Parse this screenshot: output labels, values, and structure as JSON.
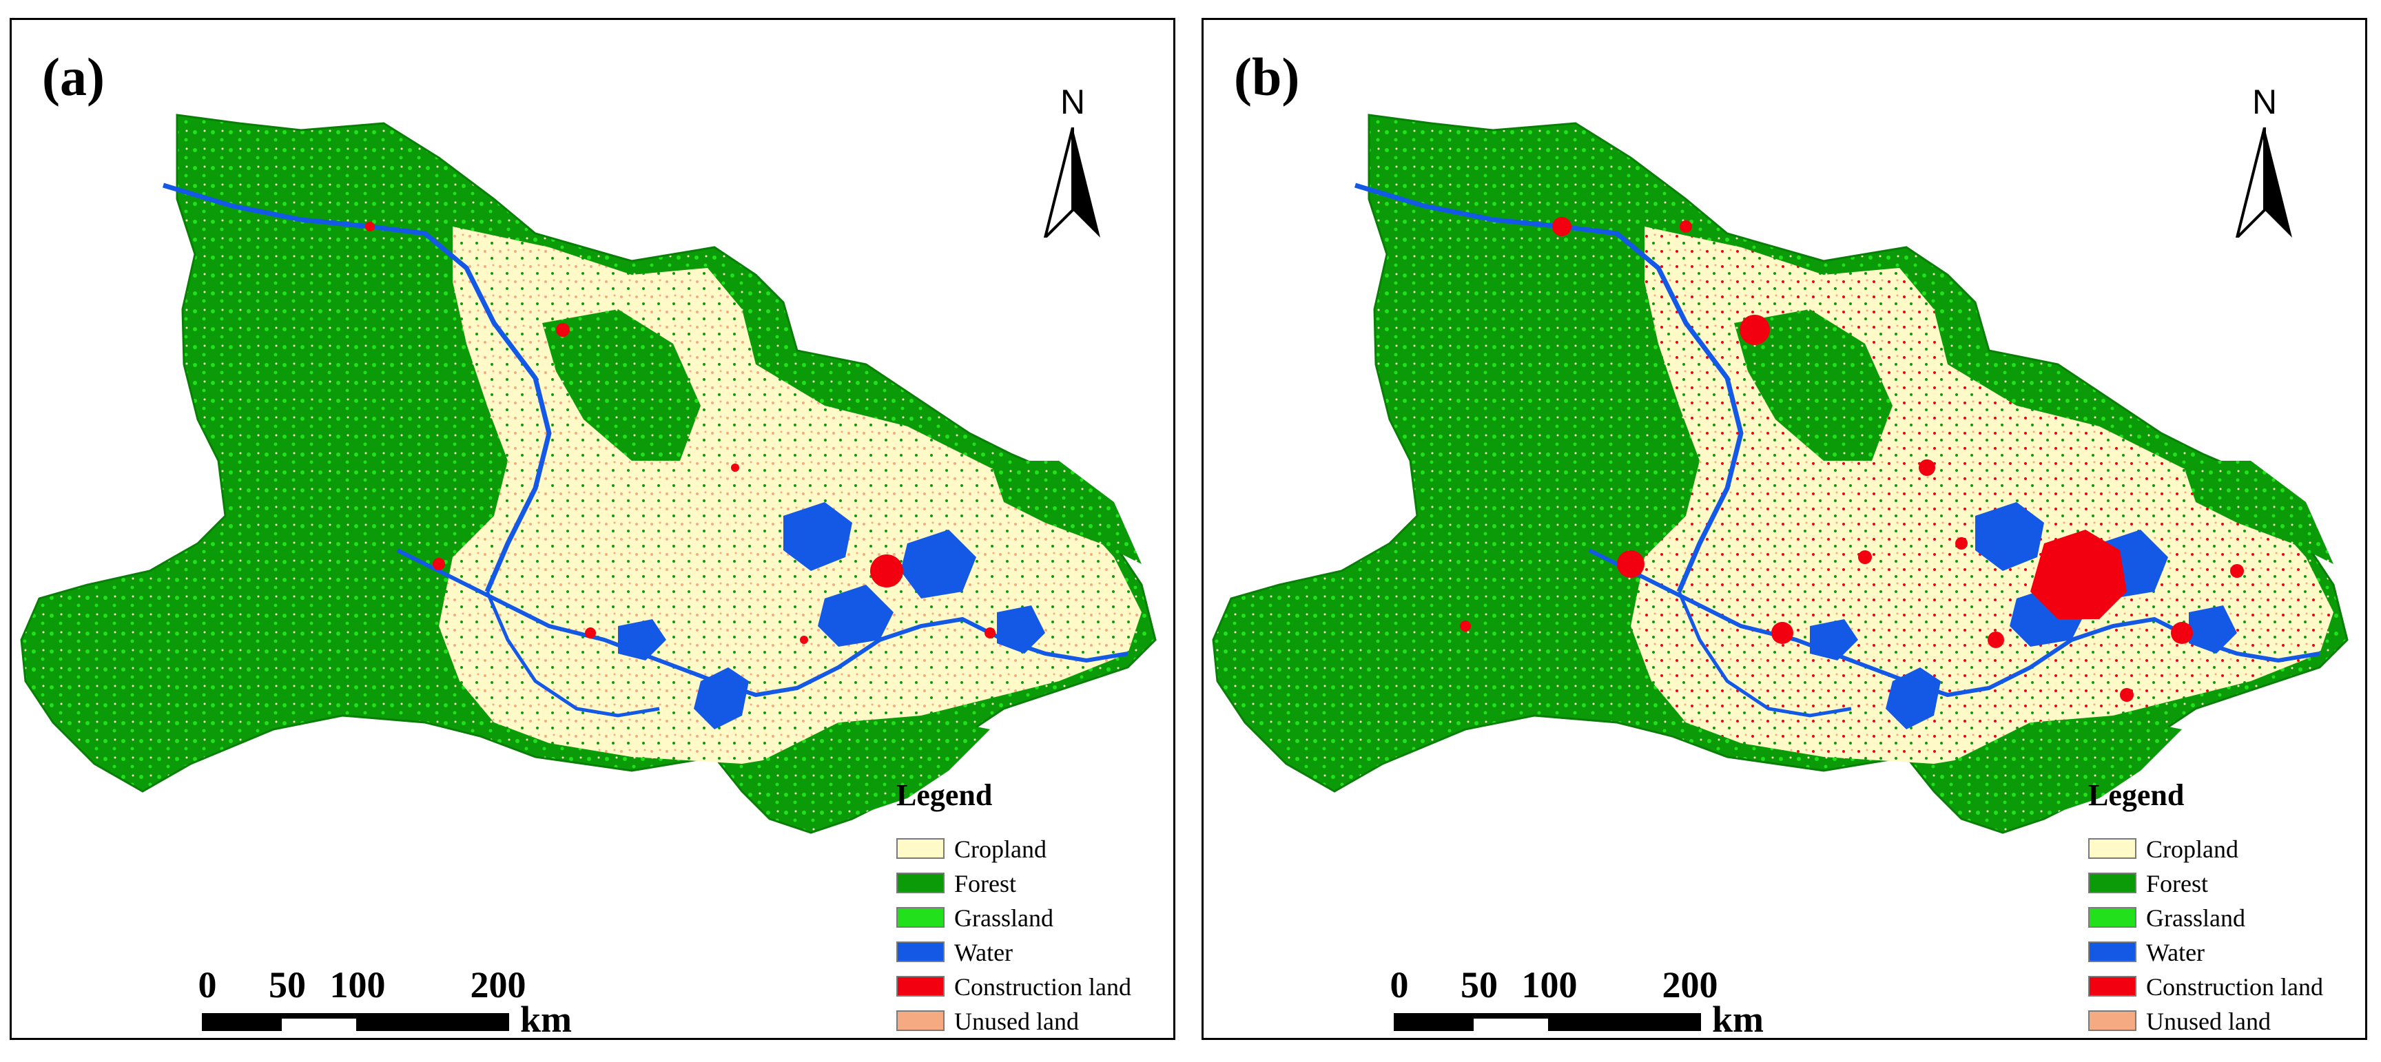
{
  "panels": [
    {
      "label": "(a)",
      "construction_extent": "low"
    },
    {
      "label": "(b)",
      "construction_extent": "high"
    }
  ],
  "north_arrow": {
    "letter": "N"
  },
  "legend": {
    "title": "Legend",
    "items": [
      {
        "label": "Cropland",
        "color": "#fffac8"
      },
      {
        "label": "Forest",
        "color": "#0b9b08"
      },
      {
        "label": "Grassland",
        "color": "#22e11c"
      },
      {
        "label": "Water",
        "color": "#1459e6"
      },
      {
        "label": "Construction land",
        "color": "#f2000f"
      },
      {
        "label": "Unused land",
        "color": "#f6aa82"
      }
    ]
  },
  "scalebar": {
    "ticks": [
      "0",
      "50",
      "100",
      "200"
    ],
    "unit": "km"
  }
}
